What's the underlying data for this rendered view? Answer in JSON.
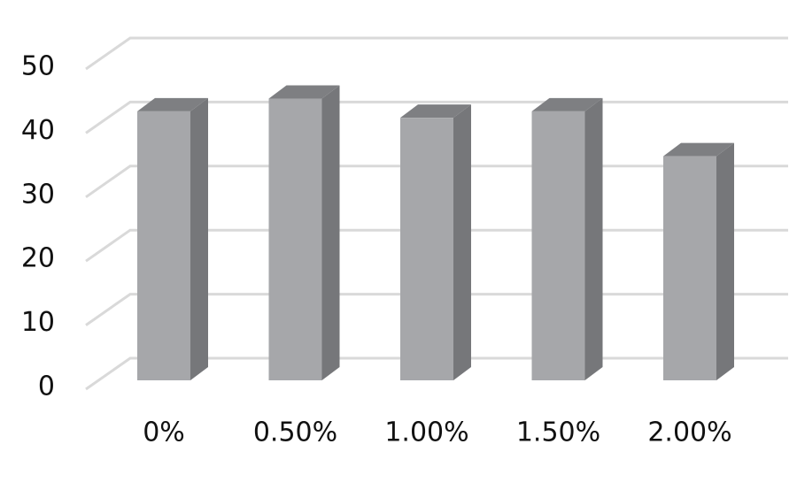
{
  "chart_data": {
    "type": "bar3d",
    "categories": [
      "0%",
      "0.50%",
      "1.00%",
      "1.50%",
      "2.00%"
    ],
    "values": [
      42,
      44,
      41,
      42,
      35
    ],
    "color": "#a6a7aa",
    "ylim": [
      0,
      50
    ],
    "yticks": [
      0,
      10,
      20,
      30,
      40,
      50
    ],
    "grid": true
  }
}
